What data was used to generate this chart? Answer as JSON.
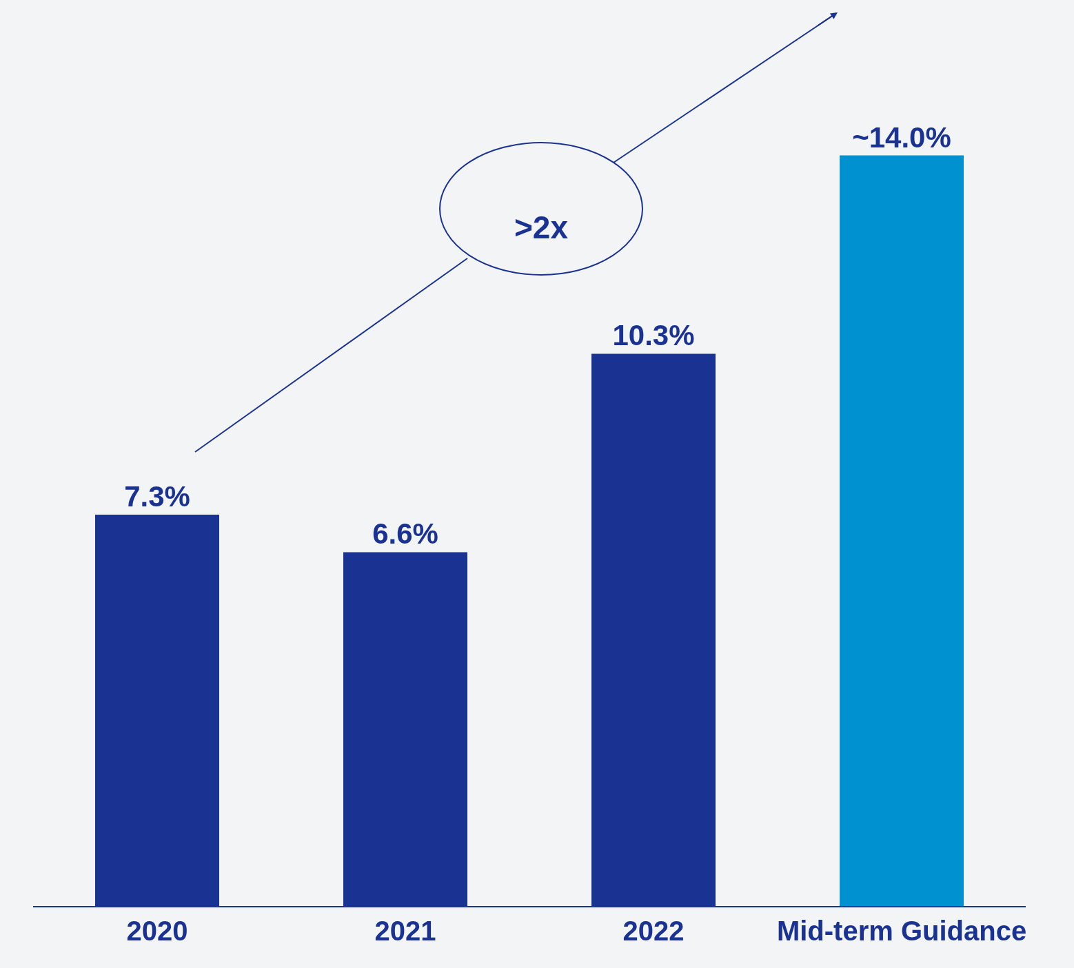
{
  "chart_data": {
    "type": "bar",
    "categories": [
      "2020",
      "2021",
      "2022",
      "Mid-term Guidance"
    ],
    "values": [
      7.3,
      6.6,
      10.3,
      14.0
    ],
    "colors": [
      "#1a3393",
      "#1a3393",
      "#1a3393",
      "#0091d0"
    ],
    "value_labels": [
      "7.3%",
      "6.6%",
      "10.3%",
      "~14.0%"
    ],
    "annotations": [
      ">2x"
    ],
    "grid": false,
    "legend": false
  }
}
